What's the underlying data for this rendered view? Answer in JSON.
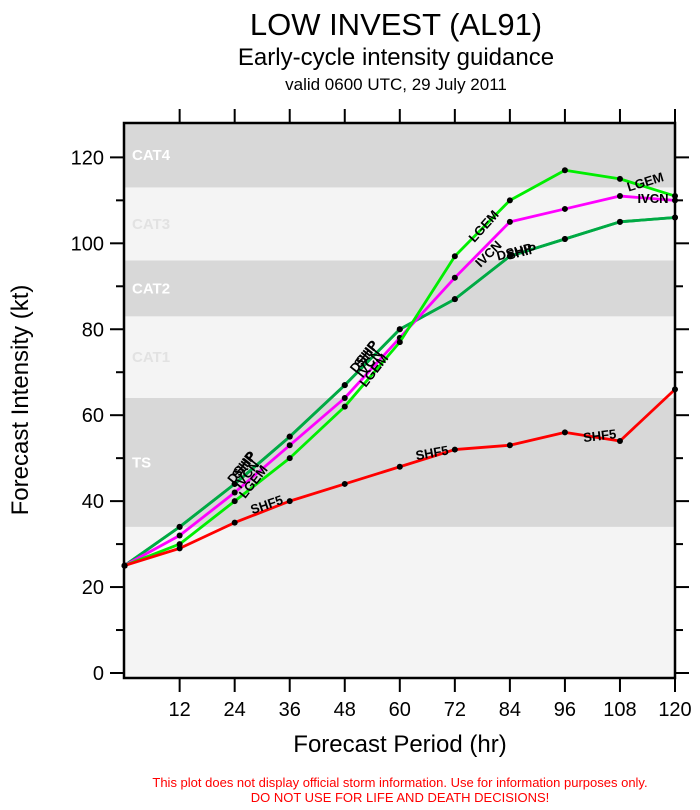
{
  "header": {
    "title": "LOW INVEST (AL91)",
    "subtitle": "Early-cycle intensity guidance",
    "valid_line": "valid 0600 UTC, 29 July 2011"
  },
  "footer": {
    "disclaimer_line1": "This plot does not display official storm information. Use for information purposes only.",
    "disclaimer_line2": "DO NOT USE FOR LIFE AND DEATH DECISIONS!",
    "color": "#ff0000"
  },
  "colors": {
    "band_dark": "#d8d8d8",
    "band_light": "#f4f4f4",
    "band_label_on_dark": "#ffffff",
    "band_label_on_light": "#e2e2e2",
    "axis": "#000000",
    "marker": "#000000"
  },
  "chart_data": {
    "type": "line",
    "title": "LOW INVEST (AL91)",
    "xlabel": "Forecast Period (hr)",
    "ylabel": "Forecast Intensity (kt)",
    "xlim": [
      0,
      120
    ],
    "ylim": [
      0,
      128
    ],
    "grid": false,
    "legend_position": "inline-curve-labels",
    "x": [
      0,
      12,
      24,
      36,
      48,
      60,
      72,
      84,
      96,
      108,
      120
    ],
    "x_ticks": [
      12,
      24,
      36,
      48,
      60,
      72,
      84,
      96,
      108,
      120
    ],
    "y_ticks_major": [
      0,
      20,
      40,
      60,
      80,
      100,
      120
    ],
    "y_ticks_minor": [
      10,
      30,
      50,
      70,
      90,
      110
    ],
    "series": [
      {
        "name": "SHIP",
        "color": "#00aa44",
        "values": [
          25,
          34,
          44,
          55,
          67,
          80,
          87,
          97,
          101,
          105,
          106
        ]
      },
      {
        "name": "DSHP",
        "color": "#00aa44",
        "values": [
          25,
          34,
          44,
          55,
          67,
          80,
          87,
          97,
          101,
          105,
          106
        ]
      },
      {
        "name": "IVCN",
        "color": "#ff00ff",
        "values": [
          25,
          32,
          42,
          53,
          64,
          78,
          92,
          105,
          108,
          111,
          110
        ]
      },
      {
        "name": "LGEM",
        "color": "#00ee00",
        "values": [
          25,
          30,
          40,
          50,
          62,
          77,
          97,
          110,
          117,
          115,
          111
        ]
      },
      {
        "name": "SHF5",
        "color": "#ff0000",
        "values": [
          25,
          29,
          35,
          40,
          44,
          48,
          52,
          53,
          56,
          54,
          66
        ]
      }
    ],
    "bands": [
      {
        "label": "",
        "from": 0,
        "to": 34,
        "shade": "light"
      },
      {
        "label": "TS",
        "from": 34,
        "to": 64,
        "shade": "dark"
      },
      {
        "label": "CAT1",
        "from": 64,
        "to": 83,
        "shade": "light"
      },
      {
        "label": "CAT2",
        "from": 83,
        "to": 96,
        "shade": "dark"
      },
      {
        "label": "CAT3",
        "from": 96,
        "to": 113,
        "shade": "light"
      },
      {
        "label": "CAT4",
        "from": 113,
        "to": 128,
        "shade": "dark"
      }
    ],
    "annotations": [
      {
        "text": "SHIP",
        "hr": 26.8,
        "kt": 47.8,
        "rot": -52
      },
      {
        "text": "DSHP",
        "hr": 26.2,
        "kt": 47.2,
        "rot": -52
      },
      {
        "text": "IVCN",
        "hr": 27.4,
        "kt": 45.6,
        "rot": -52
      },
      {
        "text": "LGEM",
        "hr": 28.8,
        "kt": 43.9,
        "rot": -52
      },
      {
        "text": "SHIP",
        "hr": 53.4,
        "kt": 73.6,
        "rot": -52
      },
      {
        "text": "DSHP",
        "hr": 52.9,
        "kt": 73.0,
        "rot": -52
      },
      {
        "text": "IVCN",
        "hr": 54.0,
        "kt": 71.4,
        "rot": -52
      },
      {
        "text": "LGEM",
        "hr": 55.1,
        "kt": 69.8,
        "rot": -52
      },
      {
        "text": "LGEM",
        "hr": 79.0,
        "kt": 103.3,
        "rot": -48
      },
      {
        "text": "IVCN",
        "hr": 80.0,
        "kt": 96.8,
        "rot": -45
      },
      {
        "text": "DSHP",
        "hr": 85.2,
        "kt": 97.0,
        "rot": -14
      },
      {
        "text": "SHIP",
        "hr": 86.8,
        "kt": 97.0,
        "rot": -14
      },
      {
        "text": "LGEM",
        "hr": 113.8,
        "kt": 113.3,
        "rot": -17
      },
      {
        "text": "IVCN",
        "hr": 115.2,
        "kt": 109.4,
        "rot": 0
      },
      {
        "text": "SHF5",
        "hr": 31.3,
        "kt": 38.2,
        "rot": -19
      },
      {
        "text": "SHF5",
        "hr": 67.2,
        "kt": 50.2,
        "rot": -10
      },
      {
        "text": "SHF5",
        "hr": 103.7,
        "kt": 54.2,
        "rot": -7
      }
    ]
  }
}
